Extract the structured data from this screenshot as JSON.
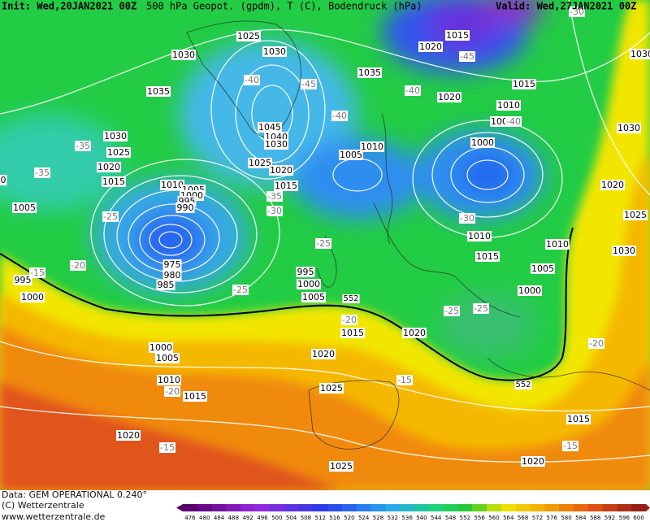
{
  "header": {
    "init": "Init: Wed,20JAN2021 00Z",
    "title": "500 hPa Geopot. (gpdm), T (C), Bodendruck (hPa)",
    "valid": "Valid: Wed,27JAN2021 00Z"
  },
  "map": {
    "pressure_labels": [
      "1025",
      "1030",
      "1030",
      "1015",
      "1020",
      "1035",
      "1035",
      "1015",
      "1020",
      "1010",
      "1005",
      "1045",
      "1040",
      "1030",
      "1030",
      "1025",
      "1020",
      "1015",
      "1005",
      "1010",
      "1000",
      "1030",
      "1025",
      "1020",
      "1015",
      "1010",
      "1005",
      "1000",
      "995",
      "990",
      "1005",
      "1020",
      "1025",
      "1010",
      "1010",
      "1030",
      "1015",
      "975",
      "980",
      "985",
      "995",
      "1000",
      "1005",
      "1005",
      "995",
      "1000",
      "1000",
      "1015",
      "1020",
      "1000",
      "1005",
      "1020",
      "1010",
      "1015",
      "1025",
      "1015",
      "1020",
      "1020",
      "1025",
      "0",
      "1030"
    ],
    "temperature_labels": [
      "-40",
      "-45",
      "-40",
      "-40",
      "-45",
      "-30",
      "-35",
      "-35",
      "-25",
      "-35",
      "-30",
      "-30",
      "-25",
      "-20",
      "-15",
      "-25",
      "-25",
      "-25",
      "-20",
      "-20",
      "-20",
      "-15",
      "-15",
      "-15",
      "-40"
    ],
    "contour_labels": [
      "552",
      "552"
    ]
  },
  "legend": {
    "ticks": [
      476,
      480,
      484,
      488,
      492,
      496,
      500,
      504,
      508,
      512,
      516,
      520,
      524,
      528,
      532,
      536,
      540,
      544,
      548,
      552,
      556,
      560,
      564,
      568,
      572,
      576,
      580,
      584,
      588,
      592,
      596,
      600
    ]
  },
  "footer": {
    "data": "Data: GEM OPERATIONAL 0.240°",
    "copyright": "(C) Wetterzentrale",
    "url": "www.wetterzentrale.de"
  }
}
